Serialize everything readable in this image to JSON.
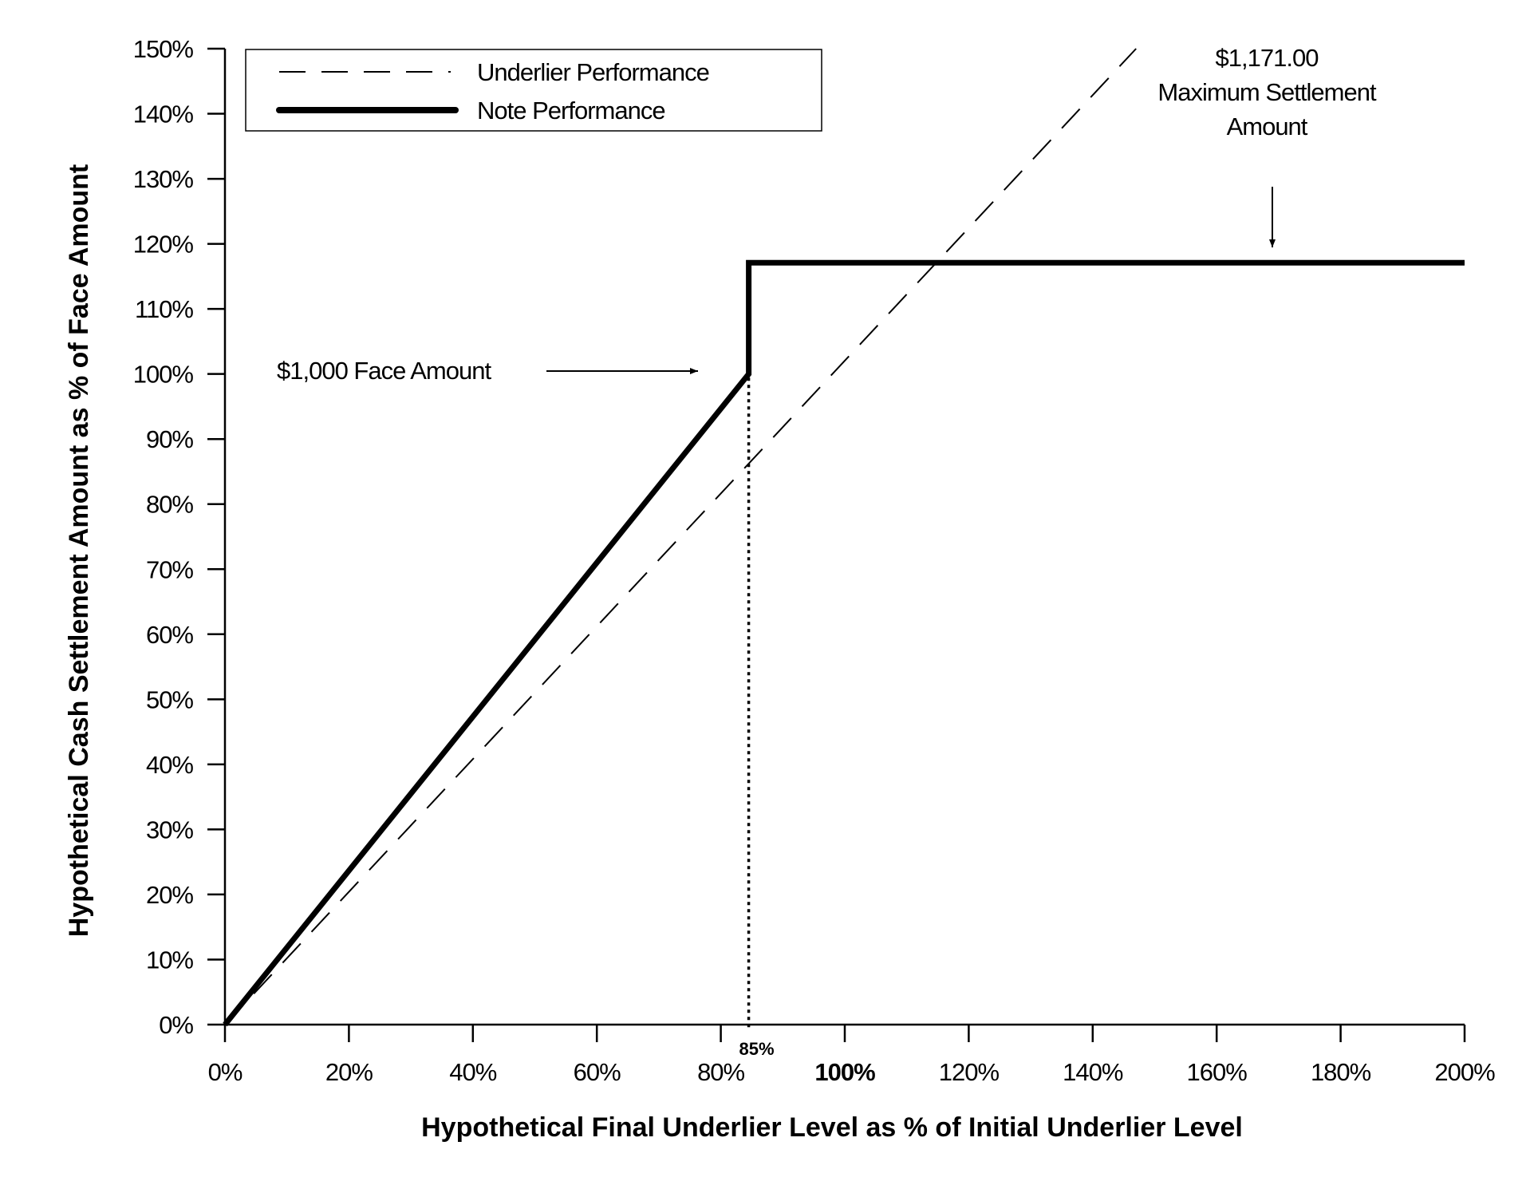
{
  "chart_data": {
    "type": "line",
    "xlabel": "Hypothetical Final Underlier Level as % of Initial Underlier Level",
    "ylabel": "Hypothetical Cash Settlement Amount as % of Face Amount",
    "xlim": [
      0,
      200
    ],
    "ylim": [
      0,
      150
    ],
    "x_ticks": [
      {
        "value": 0,
        "label": "0%",
        "bold": false
      },
      {
        "value": 20,
        "label": "20%",
        "bold": false
      },
      {
        "value": 40,
        "label": "40%",
        "bold": false
      },
      {
        "value": 60,
        "label": "60%",
        "bold": false
      },
      {
        "value": 80,
        "label": "80%",
        "bold": false
      },
      {
        "value": 100,
        "label": "100%",
        "bold": true
      },
      {
        "value": 120,
        "label": "120%",
        "bold": false
      },
      {
        "value": 140,
        "label": "140%",
        "bold": false
      },
      {
        "value": 160,
        "label": "160%",
        "bold": false
      },
      {
        "value": 180,
        "label": "180%",
        "bold": false
      },
      {
        "value": 200,
        "label": "200%",
        "bold": false
      }
    ],
    "y_ticks": [
      {
        "value": 0,
        "label": "0%"
      },
      {
        "value": 10,
        "label": "10%"
      },
      {
        "value": 20,
        "label": "20%"
      },
      {
        "value": 30,
        "label": "30%"
      },
      {
        "value": 40,
        "label": "40%"
      },
      {
        "value": 50,
        "label": "50%"
      },
      {
        "value": 60,
        "label": "60%"
      },
      {
        "value": 70,
        "label": "70%"
      },
      {
        "value": 80,
        "label": "80%"
      },
      {
        "value": 90,
        "label": "90%"
      },
      {
        "value": 100,
        "label": "100%"
      },
      {
        "value": 110,
        "label": "110%"
      },
      {
        "value": 120,
        "label": "120%"
      },
      {
        "value": 130,
        "label": "130%"
      },
      {
        "value": 140,
        "label": "140%"
      },
      {
        "value": 150,
        "label": "150%"
      }
    ],
    "series": [
      {
        "name": "Underlier Performance",
        "style": "dashed",
        "x": [
          0,
          147
        ],
        "y": [
          0,
          150
        ]
      },
      {
        "name": "Note Performance",
        "style": "solid-thick",
        "x": [
          0,
          84.5,
          84.5,
          200
        ],
        "y": [
          0,
          100,
          117.1,
          117.1
        ]
      }
    ],
    "threshold": {
      "x": 84.5,
      "y_top": 117.1,
      "label": "85%",
      "style": "dotted"
    },
    "legend": {
      "position": "top-left"
    },
    "grid": false,
    "annotations": [
      {
        "lines": [
          "$1,000 Face Amount"
        ],
        "points_to": {
          "x": 84.5,
          "y": 100
        }
      },
      {
        "lines": [
          "$1,171.00",
          "Maximum Settlement",
          "Amount"
        ],
        "points_to": {
          "x": 169,
          "y": 117.1
        }
      }
    ],
    "colors": {
      "line": "#000000",
      "background": "#ffffff"
    }
  }
}
